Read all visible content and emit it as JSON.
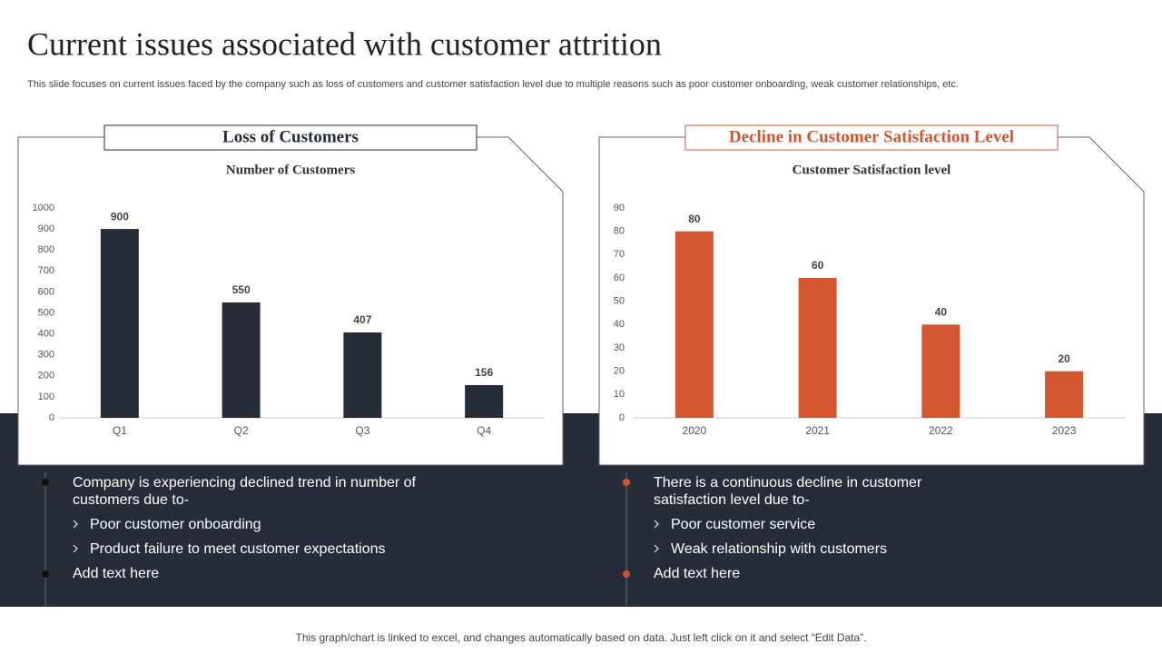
{
  "title": "Current issues associated with customer attrition",
  "subtitle": "This slide focuses on current issues faced by the company such as loss of customers and customer satisfaction level due to multiple reasons such as poor customer onboarding, weak customer relationships, etc.",
  "footer": "This graph/chart is linked to excel, and changes automatically based on data. Just left click on it and select “Edit Data”.",
  "chart_data": [
    {
      "type": "bar",
      "panel_title": "Loss of Customers",
      "title": "Number of Customers",
      "categories": [
        "Q1",
        "Q2",
        "Q3",
        "Q4"
      ],
      "values": [
        900,
        550,
        407,
        156
      ],
      "color": "#262d38",
      "ylim": [
        0,
        1000
      ],
      "yticks": [
        0,
        100,
        200,
        300,
        400,
        500,
        600,
        700,
        800,
        900,
        1000
      ]
    },
    {
      "type": "bar",
      "panel_title": "Decline in Customer Satisfaction Level",
      "title": "Customer Satisfaction level",
      "categories": [
        "2020",
        "2021",
        "2022",
        "2023"
      ],
      "values": [
        80,
        60,
        40,
        20
      ],
      "color": "#d4562f",
      "ylim": [
        0,
        90
      ],
      "yticks": [
        0,
        10,
        20,
        30,
        40,
        50,
        60,
        70,
        80,
        90
      ]
    }
  ],
  "notes": [
    {
      "bullets": [
        "Company is experiencing declined trend in number of customers due to-",
        "Add text here"
      ],
      "subbullets": [
        "Poor customer onboarding",
        "Product failure to meet customer expectations"
      ]
    },
    {
      "bullets": [
        "There is a continuous  decline in customer satisfaction level due to-",
        "Add text here"
      ],
      "subbullets": [
        "Poor customer service",
        "Weak relationship with customers"
      ]
    }
  ]
}
